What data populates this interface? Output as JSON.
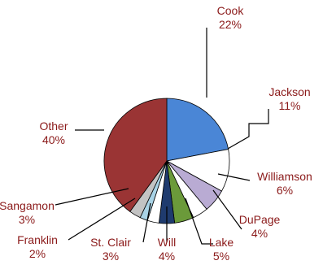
{
  "chart_data": {
    "type": "pie",
    "title": "",
    "slices": [
      {
        "name": "Cook",
        "value": 22,
        "label": "22%",
        "color": "#4a86d6",
        "label_color": "#8b1a1a"
      },
      {
        "name": "Jackson",
        "value": 11,
        "label": "11%",
        "color": "#ffffff",
        "label_color": "#8b1a1a"
      },
      {
        "name": "Williamson",
        "value": 6,
        "label": "6%",
        "color": "#b9abd3",
        "label_color": "#8b1a1a"
      },
      {
        "name": "DuPage",
        "value": 4,
        "label": "4%",
        "color": "#ffffff",
        "label_color": "#8b1a1a"
      },
      {
        "name": "Lake",
        "value": 5,
        "label": "5%",
        "color": "#6b9a3a",
        "label_color": "#8b1a1a"
      },
      {
        "name": "Will",
        "value": 4,
        "label": "4%",
        "color": "#1f3b6e",
        "label_color": "#8b1a1a"
      },
      {
        "name": "St. Clair",
        "value": 3,
        "label": "3%",
        "color": "#ffffff",
        "label_color": "#8b1a1a"
      },
      {
        "name": "Franklin",
        "value": 2,
        "label": "2%",
        "color": "#a9d3e6",
        "label_color": "#8b1a1a"
      },
      {
        "name": "Sangamon",
        "value": 3,
        "label": "3%",
        "color": "#c3c3c3",
        "label_color": "#8b1a1a"
      },
      {
        "name": "Other",
        "value": 40,
        "label": "40%",
        "color": "#9a3434",
        "label_color": "#8b1a1a"
      }
    ],
    "start_angle": "12 o'clock",
    "direction": "clockwise",
    "legend": "none",
    "grid": false
  }
}
